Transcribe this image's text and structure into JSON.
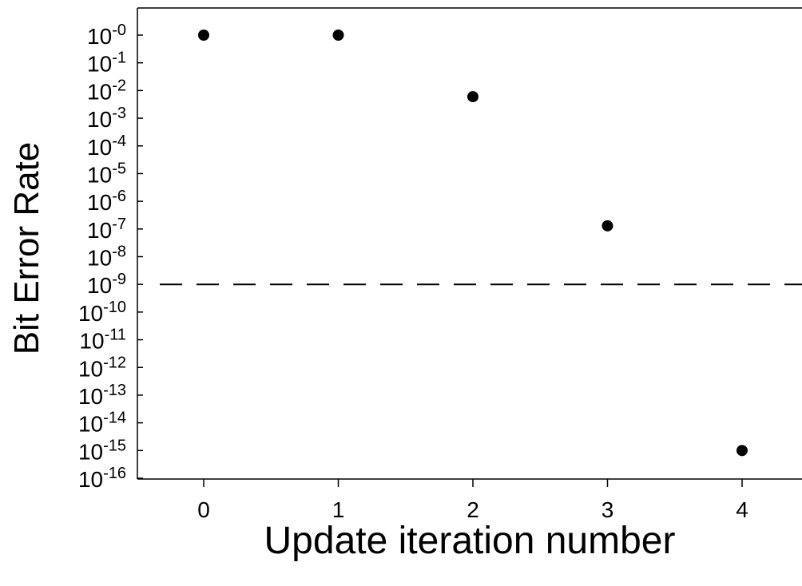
{
  "chart_data": {
    "type": "scatter",
    "xlabel": "Update iteration number",
    "ylabel": "Bit Error Rate",
    "x_ticks": [
      0,
      1,
      2,
      3,
      4
    ],
    "y_scale": "log",
    "y_tick_base": "10",
    "y_tick_exponents": [
      "-0",
      "-1",
      "-2",
      "-3",
      "-4",
      "-5",
      "-6",
      "-7",
      "-8",
      "-9",
      "-10",
      "-11",
      "-12",
      "-13",
      "-14",
      "-15",
      "-16"
    ],
    "ylim": [
      1e-16,
      1
    ],
    "grid": false,
    "series": [
      {
        "x": [
          0,
          1,
          2,
          3,
          4
        ],
        "y": [
          1,
          1,
          0.006,
          1.3e-07,
          1e-15
        ],
        "marker": "filled-circle",
        "color": "#000000"
      }
    ],
    "reference_lines": [
      {
        "orientation": "horizontal",
        "y": 1e-09,
        "style": "dashed",
        "color": "#000000"
      }
    ]
  }
}
